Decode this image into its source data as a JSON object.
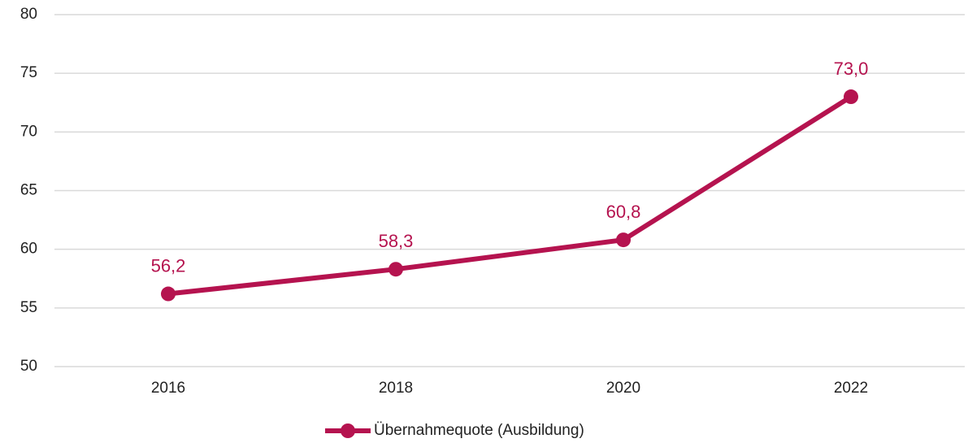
{
  "chart_data": {
    "type": "line",
    "categories": [
      "2016",
      "2018",
      "2020",
      "2022"
    ],
    "series": [
      {
        "name": "Übernahmequote (Ausbildung)",
        "color": "#b5134f",
        "values": [
          56.2,
          58.3,
          60.8,
          73.0
        ],
        "value_labels": [
          "56,2",
          "58,3",
          "60,8",
          "73,0"
        ]
      }
    ],
    "ylim": [
      50,
      80
    ],
    "yticks": [
      50,
      55,
      60,
      65,
      70,
      75,
      80
    ],
    "grid": true,
    "legend": "bottom"
  }
}
